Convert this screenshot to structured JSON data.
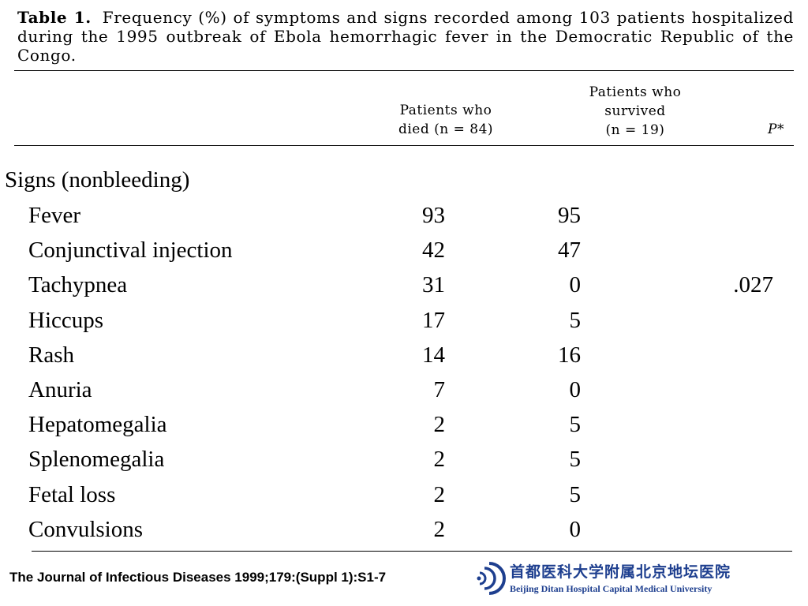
{
  "caption": {
    "lead": "Table 1.",
    "text": "Frequency (%) of symptoms and signs recorded among 103 patients hospitalized during the 1995 outbreak of Ebola hemorrhagic fever in the Democratic Republic of the Congo."
  },
  "columns": {
    "died": "Patients who\ndied (n = 84)",
    "survived": "Patients who\nsurvived\n(n = 19)",
    "p": "P*"
  },
  "section": "Signs (nonbleeding)",
  "rows": [
    {
      "label": "Fever",
      "died": "93",
      "survived": "95",
      "p": ""
    },
    {
      "label": "Conjunctival injection",
      "died": "42",
      "survived": "47",
      "p": ""
    },
    {
      "label": "Tachypnea",
      "died": "31",
      "survived": "0",
      "p": ".027"
    },
    {
      "label": "Hiccups",
      "died": "17",
      "survived": "5",
      "p": ""
    },
    {
      "label": "Rash",
      "died": "14",
      "survived": "16",
      "p": ""
    },
    {
      "label": "Anuria",
      "died": "7",
      "survived": "0",
      "p": ""
    },
    {
      "label": "Hepatomegalia",
      "died": "2",
      "survived": "5",
      "p": ""
    },
    {
      "label": "Splenomegalia",
      "died": "2",
      "survived": "5",
      "p": ""
    },
    {
      "label": "Fetal loss",
      "died": "2",
      "survived": "5",
      "p": ""
    },
    {
      "label": "Convulsions",
      "died": "2",
      "survived": "0",
      "p": ""
    }
  ],
  "footer": {
    "citation": "The Journal of Infectious Diseases 1999;179:(Suppl 1):S1-7",
    "logo_cn": "首都医科大学附属北京地坛医院",
    "logo_en": "Beijing Ditan Hospital Capital Medical University",
    "logo_color": "#1e3f8f"
  }
}
